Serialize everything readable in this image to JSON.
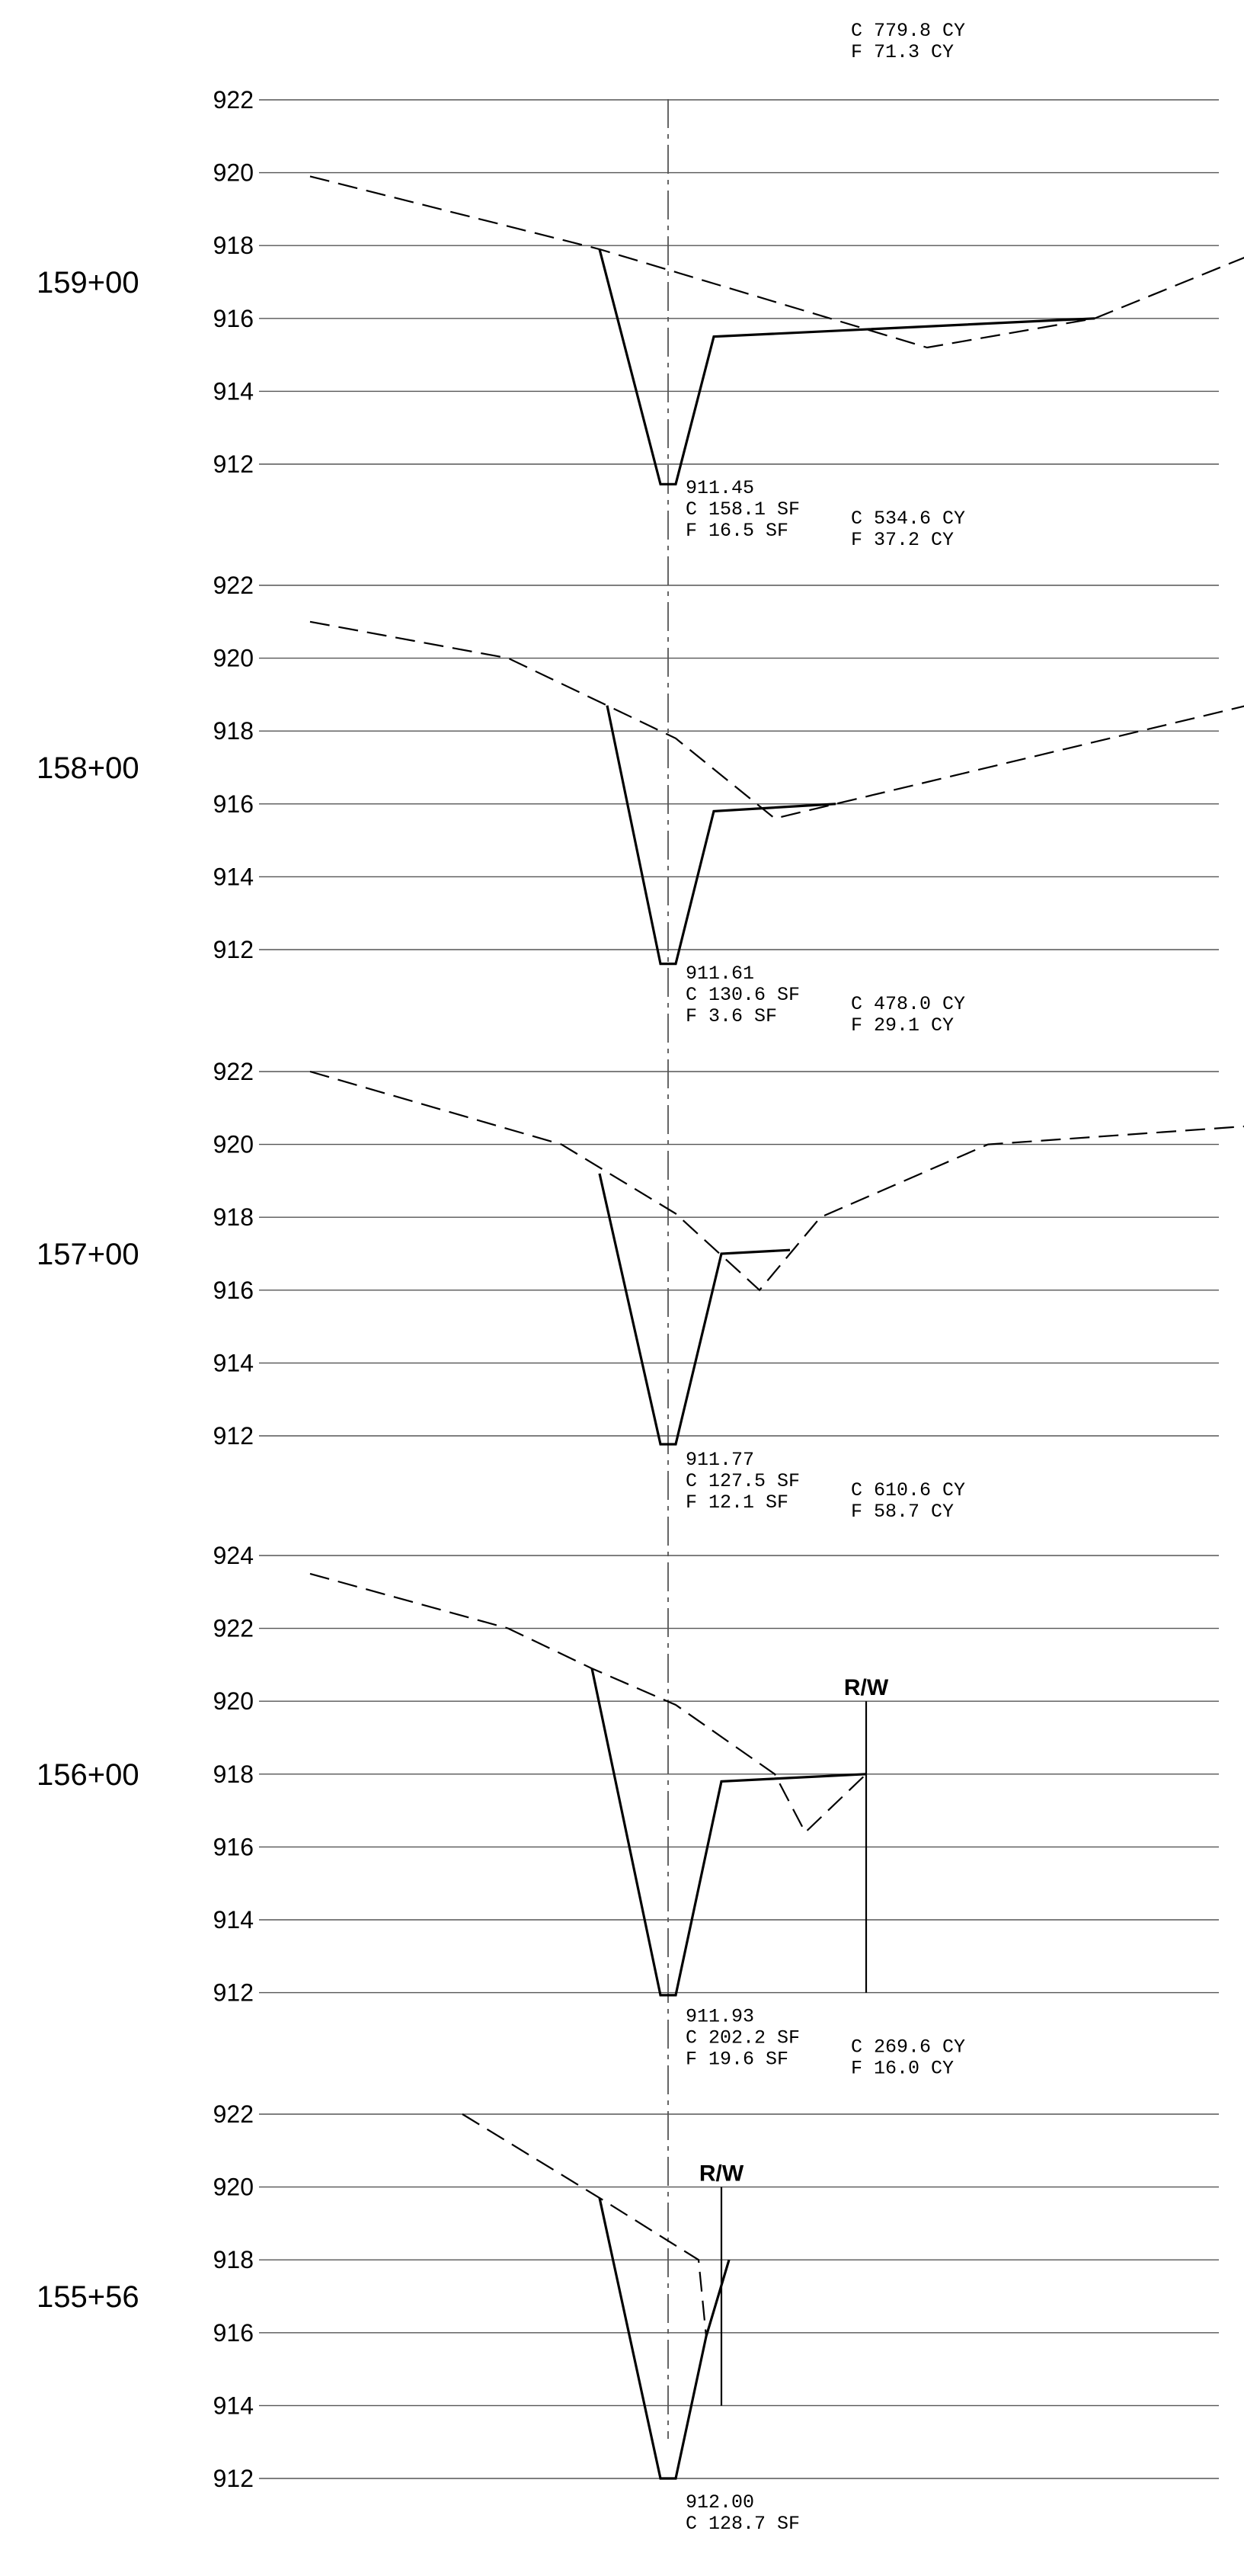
{
  "top_quantities": {
    "cut": "C 779.8 CY",
    "fill": "F 71.3 CY"
  },
  "sections": [
    {
      "station": "159+00",
      "elevations": [
        922,
        920,
        918,
        916,
        914,
        912
      ],
      "ground": [
        [
          -4.7,
          919.9
        ],
        [
          -0.9,
          917.9
        ],
        [
          3.4,
          915.2
        ],
        [
          5.6,
          916.0
        ],
        [
          7.6,
          917.7
        ]
      ],
      "design": [
        [
          -0.9,
          917.9
        ],
        [
          -0.1,
          911.45
        ],
        [
          0.1,
          911.45
        ],
        [
          0.6,
          915.5
        ],
        [
          5.6,
          916.0
        ]
      ],
      "invert": "911.45",
      "area_cut": "C 158.1 SF",
      "area_fill": "F 16.5 SF",
      "volume_cut": "C 534.6 CY",
      "volume_fill": "F 37.2 CY",
      "rw": null
    },
    {
      "station": "158+00",
      "elevations": [
        922,
        920,
        918,
        916,
        914,
        912
      ],
      "ground": [
        [
          -4.7,
          921.0
        ],
        [
          -2.1,
          920.0
        ],
        [
          -0.8,
          918.7
        ],
        [
          0.1,
          917.8
        ],
        [
          1.4,
          915.6
        ],
        [
          2.2,
          916.0
        ],
        [
          7.6,
          918.7
        ]
      ],
      "design": [
        [
          -0.8,
          918.7
        ],
        [
          -0.1,
          911.61
        ],
        [
          0.1,
          911.61
        ],
        [
          0.6,
          915.8
        ],
        [
          2.2,
          916.0
        ]
      ],
      "invert": "911.61",
      "area_cut": "C 130.6 SF",
      "area_fill": "F 3.6 SF",
      "volume_cut": "C 478.0 CY",
      "volume_fill": "F 29.1 CY",
      "rw": null
    },
    {
      "station": "157+00",
      "elevations": [
        922,
        920,
        918,
        916,
        914,
        912
      ],
      "ground": [
        [
          -4.7,
          922.0
        ],
        [
          -1.4,
          920.0
        ],
        [
          0.1,
          918.1
        ],
        [
          1.2,
          916.0
        ],
        [
          2.0,
          918.0
        ],
        [
          4.2,
          920.0
        ],
        [
          7.6,
          920.5
        ]
      ],
      "design": [
        [
          -0.9,
          919.2
        ],
        [
          -0.1,
          911.77
        ],
        [
          0.1,
          911.77
        ],
        [
          0.7,
          917.0
        ],
        [
          1.6,
          917.1
        ]
      ],
      "invert": "911.77",
      "area_cut": "C 127.5 SF",
      "area_fill": "F 12.1 SF",
      "volume_cut": "C 610.6 CY",
      "volume_fill": "F 58.7 CY",
      "rw": null
    },
    {
      "station": "156+00",
      "elevations": [
        924,
        922,
        920,
        918,
        916,
        914,
        912
      ],
      "ground": [
        [
          -4.7,
          923.5
        ],
        [
          -2.1,
          922.0
        ],
        [
          -1.0,
          920.9
        ],
        [
          0.1,
          919.9
        ],
        [
          1.4,
          918.0
        ],
        [
          1.8,
          916.4
        ],
        [
          2.6,
          918.0
        ]
      ],
      "design": [
        [
          -1.0,
          920.9
        ],
        [
          -0.1,
          911.93
        ],
        [
          0.1,
          911.93
        ],
        [
          0.7,
          917.8
        ],
        [
          2.6,
          918.0
        ]
      ],
      "invert": "911.93",
      "area_cut": "C 202.2 SF",
      "area_fill": "F 19.6 SF",
      "volume_cut": "C 269.6 CY",
      "volume_fill": "F 16.0 CY",
      "rw": {
        "label": "R/W",
        "x": 2.6,
        "top": 920.0,
        "bottom": 912.0
      }
    },
    {
      "station": "155+56",
      "elevations": [
        922,
        920,
        918,
        916,
        914,
        912
      ],
      "ground": [
        [
          -2.7,
          922.0
        ],
        [
          -0.9,
          919.7
        ],
        [
          0.4,
          918.0
        ],
        [
          0.5,
          915.9
        ]
      ],
      "design": [
        [
          -0.9,
          919.7
        ],
        [
          -0.1,
          912.0
        ],
        [
          0.1,
          912.0
        ],
        [
          0.5,
          915.9
        ],
        [
          0.8,
          918.0
        ]
      ],
      "invert": "912.00",
      "area_cut": "C 128.7 SF",
      "area_fill": "",
      "volume_cut": "",
      "volume_fill": "",
      "rw": {
        "label": "R/W",
        "x": 0.7,
        "top": 920.0,
        "bottom": 914.0
      }
    }
  ]
}
